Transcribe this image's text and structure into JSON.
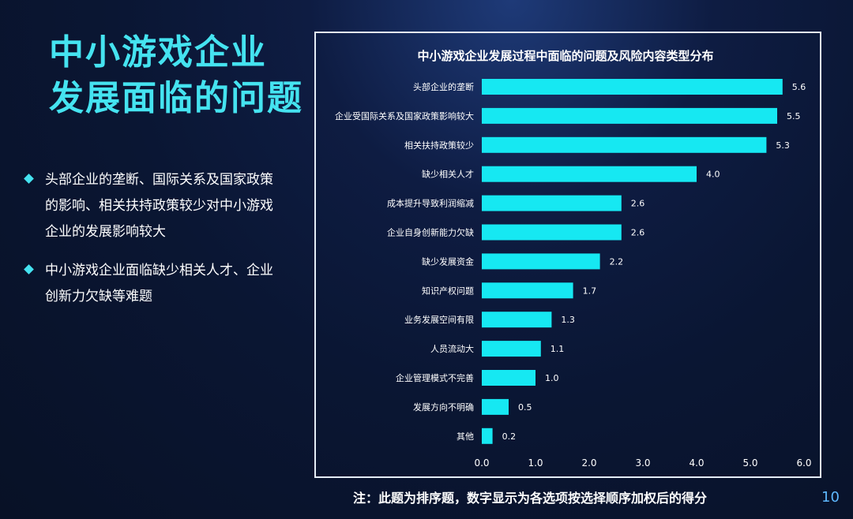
{
  "slide": {
    "title_lines": [
      "中小游戏企业",
      "发展面临的问题"
    ],
    "bullets": [
      "头部企业的垄断、国际关系及国家政策的影响、相关扶持政策较少对中小游戏企业的发展影响较大",
      "中小游戏企业面临缺少相关人才、企业创新力欠缺等难题"
    ],
    "footnote": "注：此题为排序题，数字显示为各选项按选择顺序加权后的得分",
    "page_number": "10"
  },
  "colors": {
    "bar": "#16e8f2",
    "title": "#45e3f0",
    "background": "#0a1633",
    "panel_border": "#e4ecf5",
    "page_number": "#5eb8ff"
  },
  "chart_data": {
    "type": "bar",
    "orientation": "horizontal",
    "title": "中小游戏企业发展过程中面临的问题及风险内容类型分布",
    "categories": [
      "头部企业的垄断",
      "企业受国际关系及国家政策影响较大",
      "相关扶持政策较少",
      "缺少相关人才",
      "成本提升导致利润缩减",
      "企业自身创新能力欠缺",
      "缺少发展资金",
      "知识产权问题",
      "业务发展空间有限",
      "人员流动大",
      "企业管理模式不完善",
      "发展方向不明确",
      "其他"
    ],
    "values": [
      5.6,
      5.5,
      5.3,
      4.0,
      2.6,
      2.6,
      2.2,
      1.7,
      1.3,
      1.1,
      1.0,
      0.5,
      0.2
    ],
    "value_labels": [
      "5.6",
      "5.5",
      "5.3",
      "4.0",
      "2.6",
      "2.6",
      "2.2",
      "1.7",
      "1.3",
      "1.1",
      "1.0",
      "0.5",
      "0.2"
    ],
    "x_ticks": [
      "0.0",
      "1.0",
      "2.0",
      "3.0",
      "4.0",
      "5.0",
      "6.0"
    ],
    "xlim": [
      0,
      6
    ],
    "xlabel": "",
    "ylabel": "",
    "grid": false,
    "legend": "none"
  }
}
